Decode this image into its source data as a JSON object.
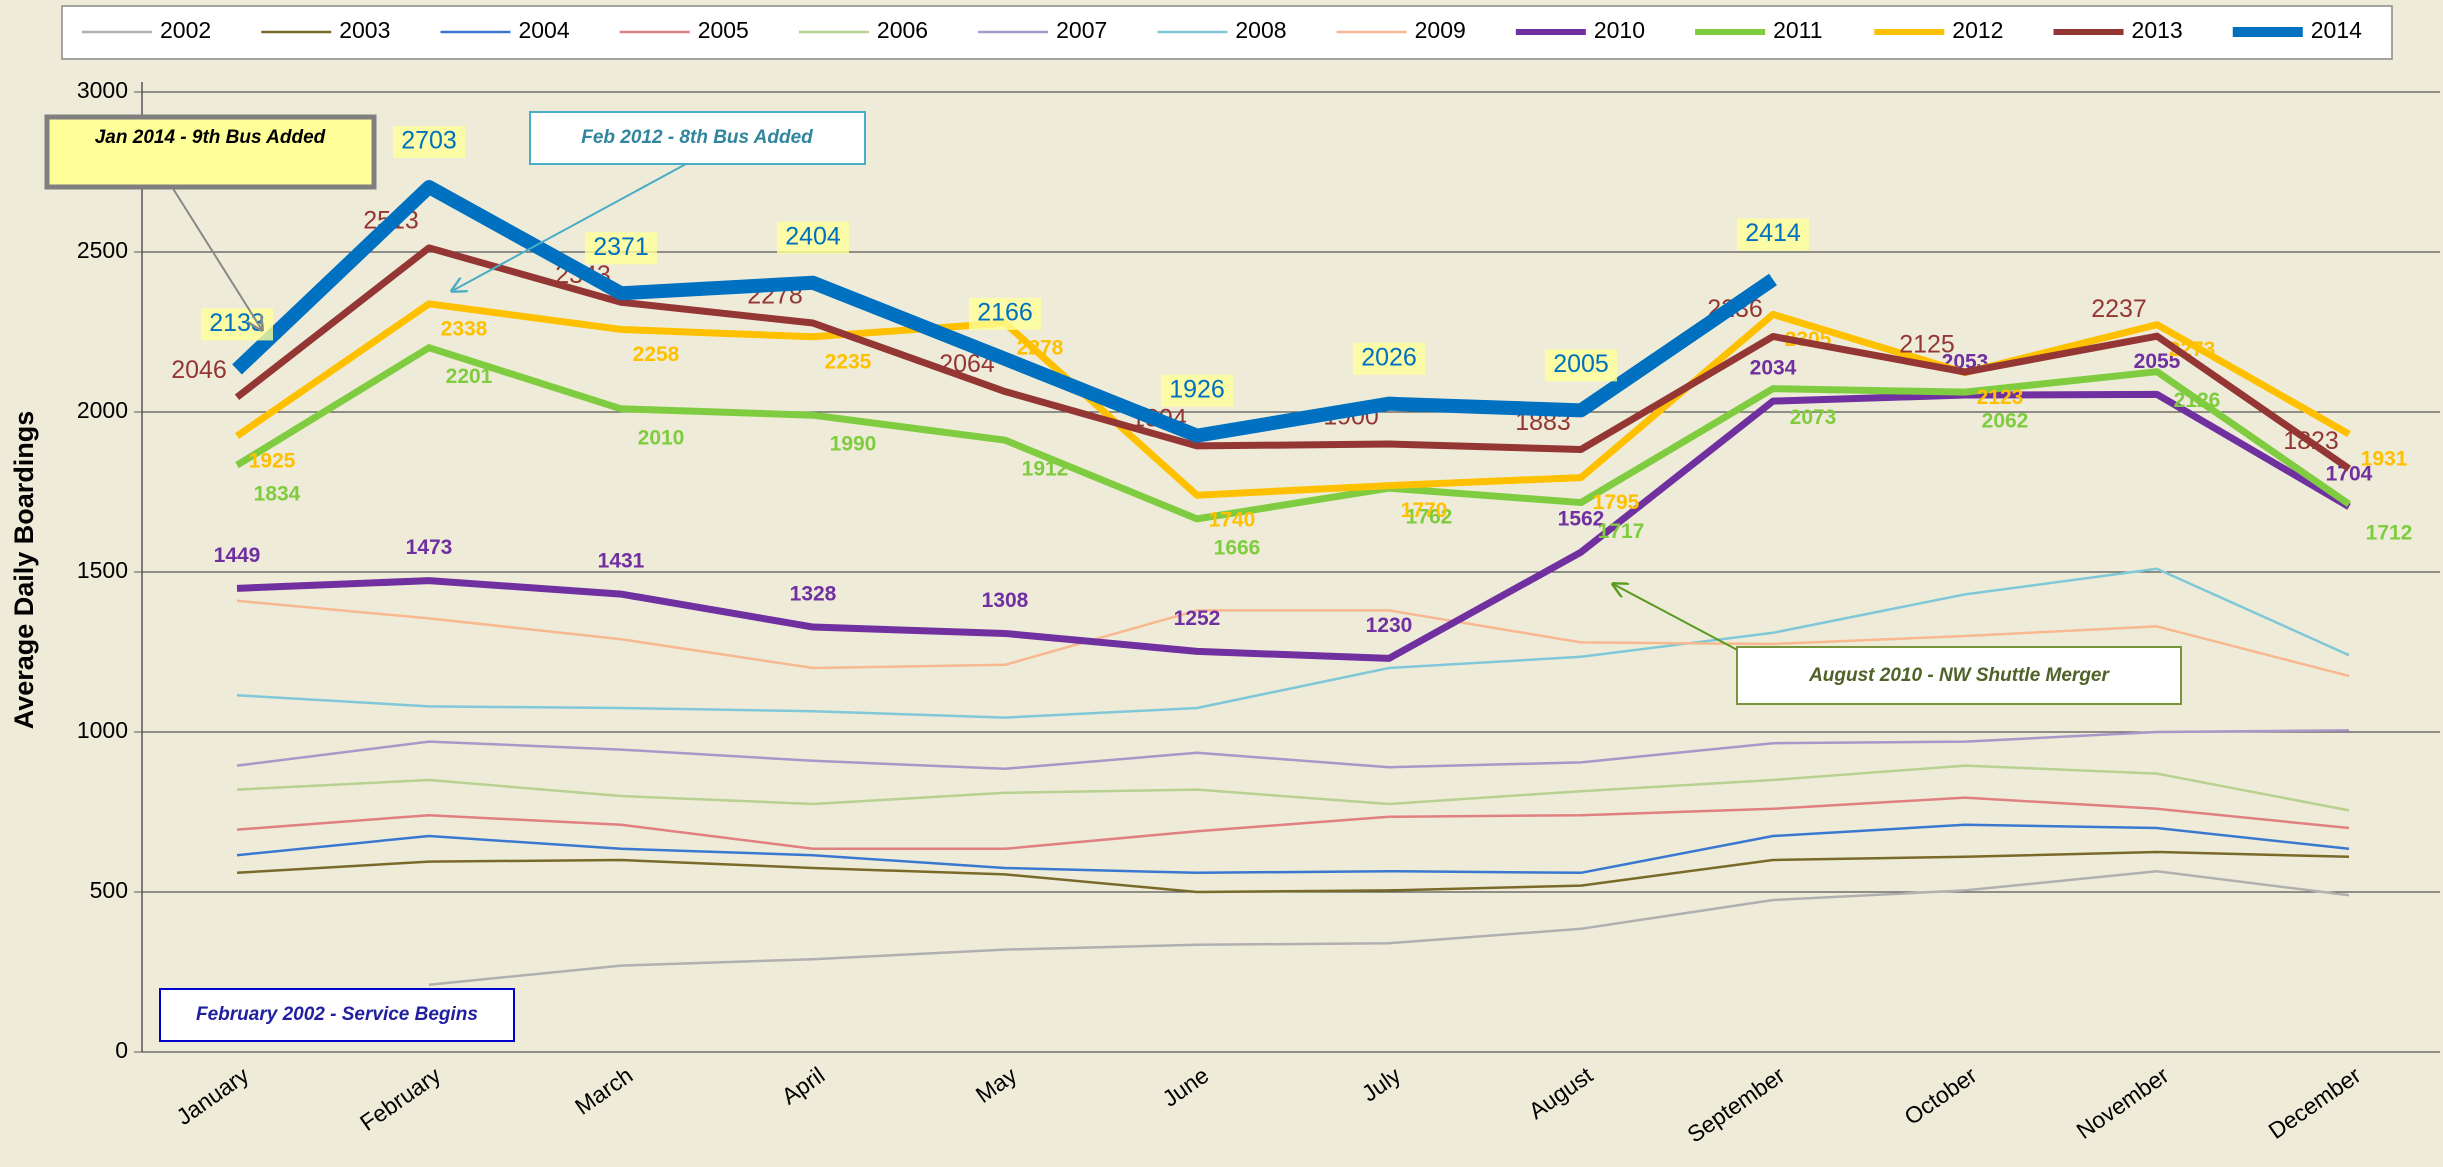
{
  "chart_data": {
    "type": "line",
    "y_label": "Average Daily Boardings",
    "categories": [
      "January",
      "February",
      "March",
      "April",
      "May",
      "June",
      "July",
      "August",
      "September",
      "October",
      "November",
      "December"
    ],
    "ylim": [
      0,
      3000
    ],
    "yticks": [
      0,
      500,
      1000,
      1500,
      2000,
      2500,
      3000
    ],
    "grid": true,
    "legend": "top",
    "series": [
      {
        "name": "2002",
        "color": "#b0b0b0",
        "values": [
          null,
          210,
          270,
          290,
          320,
          335,
          340,
          385,
          475,
          505,
          565,
          490
        ]
      },
      {
        "name": "2003",
        "color": "#7a6a2a",
        "values": [
          560,
          595,
          600,
          575,
          555,
          500,
          505,
          520,
          600,
          610,
          625,
          610
        ]
      },
      {
        "name": "2004",
        "color": "#3a78d0",
        "values": [
          615,
          675,
          635,
          615,
          575,
          560,
          565,
          560,
          675,
          710,
          700,
          635
        ]
      },
      {
        "name": "2005",
        "color": "#e08080",
        "values": [
          695,
          740,
          710,
          635,
          635,
          690,
          735,
          740,
          760,
          795,
          760,
          700
        ]
      },
      {
        "name": "2006",
        "color": "#b8d090",
        "values": [
          820,
          850,
          800,
          775,
          810,
          820,
          775,
          815,
          850,
          895,
          870,
          755
        ]
      },
      {
        "name": "2007",
        "color": "#a898c8",
        "values": [
          895,
          970,
          945,
          910,
          885,
          935,
          890,
          905,
          965,
          970,
          1000,
          1005
        ]
      },
      {
        "name": "2008",
        "color": "#80c8d8",
        "values": [
          1115,
          1080,
          1075,
          1065,
          1045,
          1075,
          1200,
          1235,
          1310,
          1430,
          1510,
          1240
        ]
      },
      {
        "name": "2009",
        "color": "#f8b890",
        "values": [
          1410,
          1355,
          1290,
          1200,
          1210,
          1380,
          1380,
          1280,
          1275,
          1300,
          1330,
          1175
        ]
      },
      {
        "name": "2010",
        "color": "#7030a0",
        "labels": true,
        "values": [
          1449,
          1473,
          1431,
          1328,
          1308,
          1252,
          1230,
          1562,
          2034,
          2053,
          2055,
          1704
        ]
      },
      {
        "name": "2011",
        "color": "#80cc40",
        "labels": true,
        "values": [
          1834,
          2201,
          2010,
          1990,
          1912,
          1666,
          1762,
          1717,
          2073,
          2062,
          2126,
          1712
        ]
      },
      {
        "name": "2012",
        "color": "#ffc000",
        "labels": true,
        "values": [
          1925,
          2338,
          2258,
          2235,
          2278,
          1740,
          1770,
          1795,
          2305,
          2123,
          2273,
          1931
        ]
      },
      {
        "name": "2013",
        "color": "#943634",
        "labels": true,
        "values": [
          2046,
          2513,
          2343,
          2278,
          2064,
          1894,
          1900,
          1883,
          2236,
          2125,
          2237,
          1823
        ]
      },
      {
        "name": "2014",
        "color": "#0070c0",
        "labels": true,
        "values": [
          2133,
          2703,
          2371,
          2404,
          2166,
          1926,
          2026,
          2005,
          2414,
          null,
          null,
          null
        ]
      }
    ],
    "annotations": [
      "Jan 2014 - 9th Bus Added",
      "Feb 2012 - 8th Bus Added",
      "August 2010 - NW Shuttle Merger",
      "February 2002 - Service Begins"
    ]
  }
}
